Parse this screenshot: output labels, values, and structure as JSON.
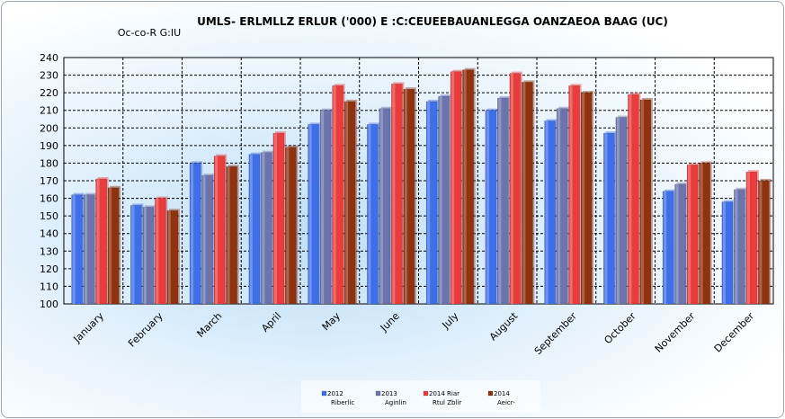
{
  "chart_data": {
    "type": "bar",
    "title": "UMLS- ERLMLLZ ERLUR ('000) E :C:CEUEEBAUANLEGGA OANZAEOA BAAG (UC)",
    "subtitle": "Oc-co-R G:IU",
    "categories": [
      "January",
      "February",
      "March",
      "April",
      "May",
      "June",
      "July",
      "August",
      "September",
      "October",
      "November",
      "December"
    ],
    "series": [
      {
        "name": "2012",
        "sublabel": "Riberlic",
        "color": "#3f6fe8",
        "values": [
          162,
          156,
          180,
          185,
          202,
          202,
          215,
          210,
          204,
          197,
          164,
          158
        ]
      },
      {
        "name": "2013",
        "sublabel": "Aginlin",
        "color": "#6b74ad",
        "values": [
          162,
          155,
          173,
          186,
          210,
          211,
          218,
          217,
          211,
          206,
          168,
          165
        ]
      },
      {
        "name": "2014 Riar",
        "sublabel": "Rtul Zblir",
        "color": "#ea3c3c",
        "values": [
          171,
          160,
          184,
          197,
          224,
          225,
          232,
          231,
          224,
          219,
          179,
          175
        ]
      },
      {
        "name": "2014",
        "sublabel": "Aeicr-",
        "color": "#8e3210",
        "values": [
          166,
          153,
          178,
          189,
          215,
          222,
          233,
          226,
          220,
          216,
          180,
          170
        ]
      }
    ],
    "ylim": [
      100,
      240
    ],
    "yticks": [
      100,
      110,
      120,
      130,
      140,
      150,
      160,
      170,
      180,
      190,
      200,
      210,
      220,
      230,
      240
    ],
    "grid": true,
    "legend_position": "bottom-center",
    "xlabel": "",
    "ylabel": ""
  }
}
